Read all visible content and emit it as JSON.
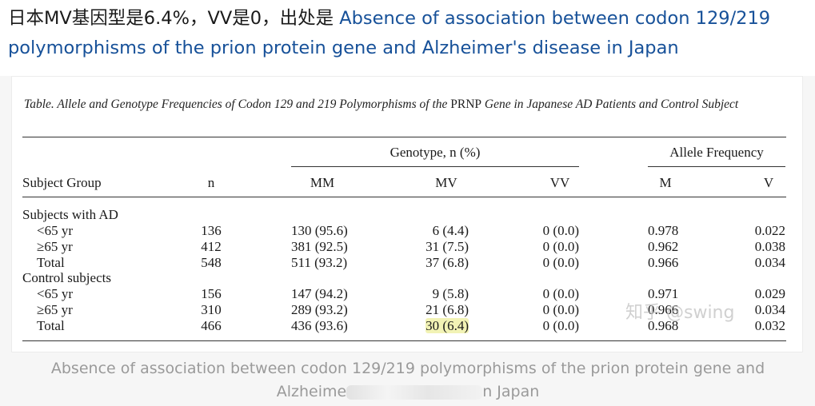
{
  "header": {
    "prefix": "日本MV基因型是6.4%，VV是0，出处是 ",
    "link_text": "Absence of association between codon 129/219 polymorphisms of the prion protein gene and Alzheimer's disease in Japan"
  },
  "table": {
    "caption_a": "Table. Allele and Genotype Frequencies of Codon 129 and 219 Polymorphisms of the ",
    "caption_b": "PRNP",
    "caption_c": " Gene in Japanese AD Patients and Control Subject",
    "group_genotype": "Genotype, n (%)",
    "group_allele": "Allele Frequency",
    "col_subject": "Subject Group",
    "col_n": "n",
    "col_mm": "MM",
    "col_mv": "MV",
    "col_vv": "VV",
    "col_m": "M",
    "col_v": "V",
    "rows": [
      {
        "label": "Subjects with AD",
        "n": "",
        "mm": "",
        "mv": "",
        "vv": "",
        "m": "",
        "v": ""
      },
      {
        "label": "<65 yr",
        "n": "136",
        "mm": "130 (95.6)",
        "mv": "6 (4.4)",
        "vv": "0 (0.0)",
        "m": "0.978",
        "v": "0.022"
      },
      {
        "label": "≥65 yr",
        "n": "412",
        "mm": "381 (92.5)",
        "mv": "31 (7.5)",
        "vv": "0 (0.0)",
        "m": "0.962",
        "v": "0.038"
      },
      {
        "label": "Total",
        "n": "548",
        "mm": "511 (93.2)",
        "mv": "37 (6.8)",
        "vv": "0 (0.0)",
        "m": "0.966",
        "v": "0.034"
      },
      {
        "label": "Control subjects",
        "n": "",
        "mm": "",
        "mv": "",
        "vv": "",
        "m": "",
        "v": ""
      },
      {
        "label": "<65 yr",
        "n": "156",
        "mm": "147 (94.2)",
        "mv": "9 (5.8)",
        "vv": "0 (0.0)",
        "m": "0.971",
        "v": "0.029"
      },
      {
        "label": "≥65 yr",
        "n": "310",
        "mm": "289 (93.2)",
        "mv": "21 (6.8)",
        "vv": "0 (0.0)",
        "m": "0.966",
        "v": "0.034"
      },
      {
        "label": "Total",
        "n": "466",
        "mm": "436 (93.6)",
        "mv": "30 (6.4)",
        "vv": "0 (0.0)",
        "m": "0.968",
        "v": "0.032"
      }
    ],
    "highlight_color": "#e8ea78"
  },
  "watermark": "知乎 @swing",
  "figure_caption_a": "Absence of association between codon 129/219 polymorphisms of the prion protein gene and",
  "figure_caption_b1": "Alzheime",
  "figure_caption_b2": "n Japan"
}
